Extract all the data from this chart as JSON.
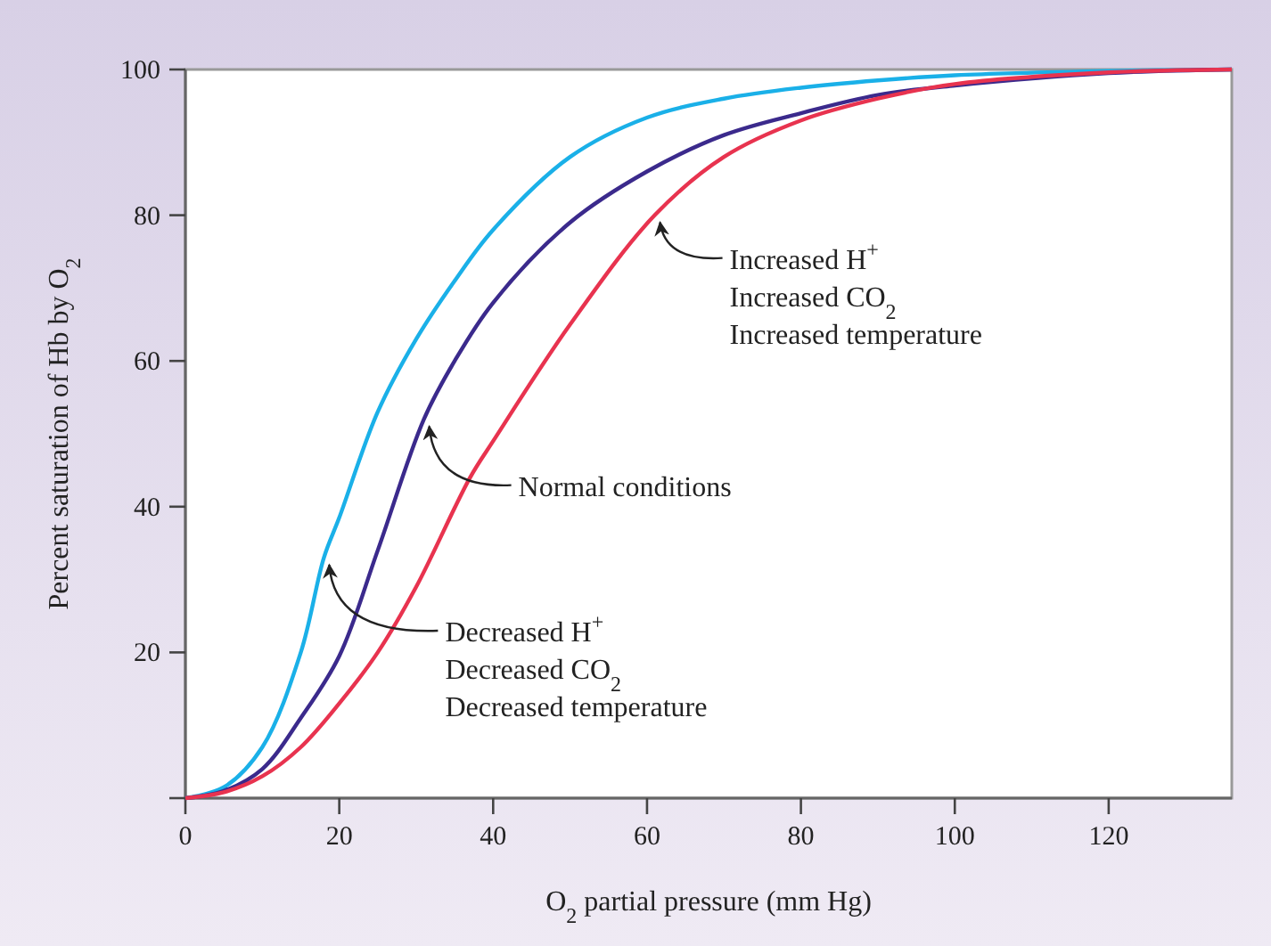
{
  "chart_data": {
    "type": "line",
    "xlabel": "O$_{2}$ partial pressure (mm Hg)",
    "ylabel": "Percent saturation of Hb by O$_{2}$",
    "xlim": [
      0,
      136
    ],
    "xticks": [
      0,
      20,
      40,
      60,
      80,
      100,
      120
    ],
    "ylim": [
      0,
      100
    ],
    "yticks": [
      {
        "value": 0,
        "label": null
      },
      20,
      40,
      60,
      80,
      100
    ],
    "marker": "none",
    "line_style": "solid",
    "series": [
      {
        "color": "#1ab0e8",
        "x": [
          0,
          5,
          10,
          15,
          18,
          20,
          25,
          30,
          35,
          40,
          50,
          60,
          70,
          80,
          90,
          100,
          120,
          136
        ],
        "values": [
          0,
          1.5,
          7,
          20,
          33,
          38.5,
          53,
          63,
          71,
          78,
          88,
          93.4,
          96,
          97.5,
          98.5,
          99.2,
          99.8,
          100
        ]
      },
      {
        "color": "#3b2a8c",
        "x": [
          0,
          5,
          10,
          15,
          20,
          25,
          31,
          35,
          40,
          50,
          60,
          70,
          80,
          90,
          100,
          120,
          136
        ],
        "values": [
          0,
          1,
          4,
          11,
          19.5,
          34,
          52,
          60,
          68,
          79,
          86,
          91,
          94,
          96.5,
          97.8,
          99.5,
          100
        ]
      },
      {
        "color": "#e8334f",
        "x": [
          0,
          5,
          10,
          15,
          20,
          25,
          30,
          37,
          40,
          50,
          61,
          70,
          80,
          90,
          100,
          120,
          136
        ],
        "values": [
          0,
          0.8,
          3,
          7,
          13,
          20,
          29,
          44,
          49,
          65,
          80,
          88,
          93,
          96,
          98,
          99.6,
          100
        ]
      }
    ],
    "annotations": [
      {
        "text": "Increased H$^{+}$\nIncreased CO$_{2}$\nIncreased temperature",
        "x": 61,
        "y": 80
      },
      {
        "text": "Normal conditions",
        "x": 31,
        "y": 52
      },
      {
        "text": "Decreased H$^{+}$\nDecreased CO$_{2}$\nDecreased temperature",
        "x": 18,
        "y": 33
      }
    ]
  }
}
